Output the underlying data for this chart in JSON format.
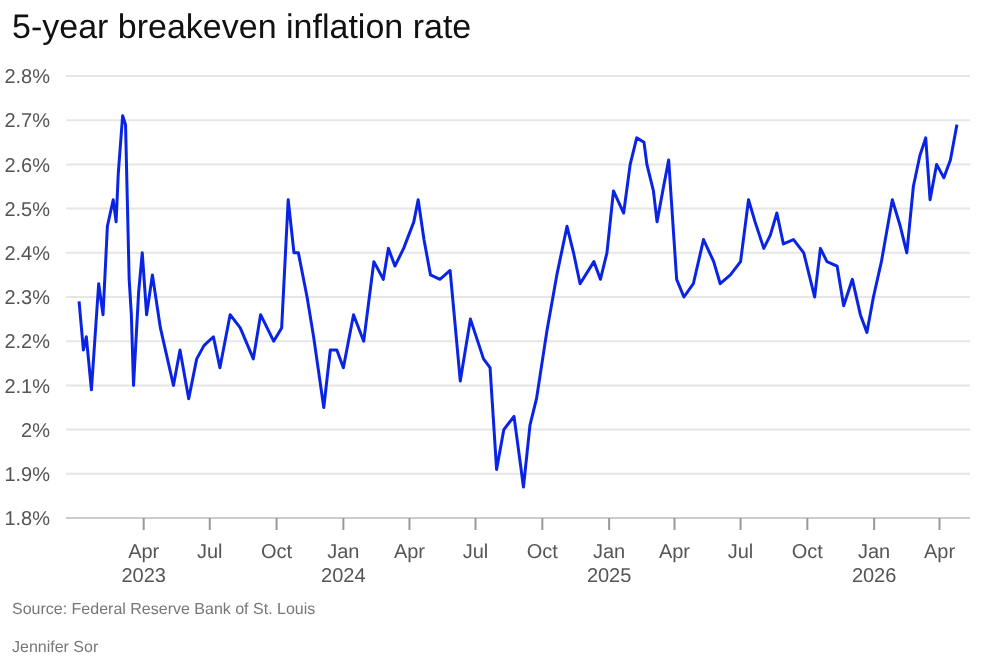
{
  "chart_data": {
    "type": "line",
    "title": "5-year breakeven inflation rate",
    "annotations": [
      "Source: Federal Reserve Bank of St. Louis",
      "Jennifer Sor"
    ],
    "x": [
      "2023-01-02",
      "2023-01-08",
      "2023-01-12",
      "2023-01-19",
      "2023-01-29",
      "2023-02-04",
      "2023-02-10",
      "2023-02-18",
      "2023-02-22",
      "2023-02-25",
      "2023-03-03",
      "2023-03-07",
      "2023-03-12",
      "2023-03-15",
      "2023-03-18",
      "2023-03-25",
      "2023-03-30",
      "2023-04-05",
      "2023-04-13",
      "2023-04-24",
      "2023-05-12",
      "2023-05-21",
      "2023-06-02",
      "2023-06-13",
      "2023-06-23",
      "2023-07-06",
      "2023-07-15",
      "2023-07-29",
      "2023-08-12",
      "2023-08-30",
      "2023-09-09",
      "2023-09-27",
      "2023-10-08",
      "2023-10-17",
      "2023-10-25",
      "2023-10-31",
      "2023-11-12",
      "2023-11-21",
      "2023-12-05",
      "2023-12-14",
      "2023-12-23",
      "2024-01-01",
      "2024-01-15",
      "2024-01-29",
      "2024-02-12",
      "2024-02-25",
      "2024-03-03",
      "2024-03-12",
      "2024-03-24",
      "2024-04-07",
      "2024-04-13",
      "2024-04-21",
      "2024-04-30",
      "2024-05-13",
      "2024-05-27",
      "2024-06-10",
      "2024-06-24",
      "2024-07-12",
      "2024-07-21",
      "2024-07-30",
      "2024-08-09",
      "2024-08-23",
      "2024-09-01",
      "2024-09-05",
      "2024-09-14",
      "2024-09-23",
      "2024-10-07",
      "2024-10-21",
      "2024-11-04",
      "2024-11-13",
      "2024-11-22",
      "2024-12-11",
      "2024-12-20",
      "2024-12-29",
      "2025-01-07",
      "2025-01-21",
      "2025-01-30",
      "2025-02-08",
      "2025-02-18",
      "2025-02-22",
      "2025-03-03",
      "2025-03-08",
      "2025-03-17",
      "2025-03-24",
      "2025-04-04",
      "2025-04-14",
      "2025-04-27",
      "2025-05-11",
      "2025-05-25",
      "2025-06-03",
      "2025-06-17",
      "2025-07-01",
      "2025-07-12",
      "2025-07-21",
      "2025-08-02",
      "2025-08-11",
      "2025-08-20",
      "2025-08-29",
      "2025-09-12",
      "2025-09-26",
      "2025-10-11",
      "2025-10-19",
      "2025-10-28",
      "2025-11-11",
      "2025-11-20",
      "2025-12-02",
      "2025-12-13",
      "2025-12-22",
      "2025-12-31",
      "2026-01-11",
      "2026-01-26",
      "2026-02-06",
      "2026-02-15",
      "2026-02-24",
      "2026-03-05",
      "2026-03-13",
      "2026-03-19",
      "2026-03-28",
      "2026-04-07",
      "2026-04-16",
      "2026-04-25"
    ],
    "series": [
      {
        "color": "#0a24e6",
        "values": [
          2.29,
          2.18,
          2.21,
          2.09,
          2.33,
          2.26,
          2.46,
          2.52,
          2.47,
          2.58,
          2.71,
          2.69,
          2.34,
          2.26,
          2.1,
          2.31,
          2.4,
          2.26,
          2.35,
          2.23,
          2.1,
          2.18,
          2.07,
          2.16,
          2.19,
          2.21,
          2.14,
          2.26,
          2.23,
          2.16,
          2.26,
          2.2,
          2.23,
          2.52,
          2.4,
          2.4,
          2.3,
          2.21,
          2.05,
          2.18,
          2.18,
          2.14,
          2.26,
          2.2,
          2.38,
          2.34,
          2.41,
          2.37,
          2.41,
          2.47,
          2.52,
          2.43,
          2.35,
          2.34,
          2.36,
          2.11,
          2.25,
          2.16,
          2.14,
          1.91,
          2.0,
          2.03,
          1.92,
          1.87,
          2.01,
          2.07,
          2.22,
          2.35,
          2.46,
          2.4,
          2.33,
          2.38,
          2.34,
          2.4,
          2.54,
          2.49,
          2.6,
          2.66,
          2.65,
          2.6,
          2.54,
          2.47,
          2.55,
          2.61,
          2.34,
          2.3,
          2.33,
          2.43,
          2.38,
          2.33,
          2.35,
          2.38,
          2.52,
          2.47,
          2.41,
          2.44,
          2.49,
          2.42,
          2.43,
          2.4,
          2.3,
          2.41,
          2.38,
          2.37,
          2.28,
          2.34,
          2.26,
          2.22,
          2.3,
          2.38,
          2.52,
          2.46,
          2.4,
          2.55,
          2.62,
          2.66,
          2.52,
          2.6,
          2.57,
          2.61,
          2.69
        ]
      }
    ],
    "xlim": [
      "2022-12-15",
      "2026-05-13"
    ],
    "xticks": [
      {
        "value": "2023-04-01",
        "label": "Apr 2023"
      },
      {
        "value": "2023-07-01",
        "label": "Jul"
      },
      {
        "value": "2023-10-01",
        "label": "Oct"
      },
      {
        "value": "2024-01-01",
        "label": "Jan 2024"
      },
      {
        "value": "2024-04-01",
        "label": "Apr"
      },
      {
        "value": "2024-07-01",
        "label": "Jul"
      },
      {
        "value": "2024-10-01",
        "label": "Oct"
      },
      {
        "value": "2025-01-01",
        "label": "Jan 2025"
      },
      {
        "value": "2025-04-01",
        "label": "Apr"
      },
      {
        "value": "2025-07-01",
        "label": "Jul"
      },
      {
        "value": "2025-10-01",
        "label": "Oct"
      },
      {
        "value": "2026-01-01",
        "label": "Jan 2026"
      },
      {
        "value": "2026-04-01",
        "label": "Apr"
      }
    ],
    "ylim": [
      1.8,
      2.8
    ],
    "yticks": [
      {
        "value": 1.8,
        "label": "1.8%"
      },
      {
        "value": 1.9,
        "label": "1.9%"
      },
      {
        "value": 2,
        "label": "2%"
      },
      {
        "value": 2.1,
        "label": "2.1%"
      },
      {
        "value": 2.2,
        "label": "2.2%"
      },
      {
        "value": 2.3,
        "label": "2.3%"
      },
      {
        "value": 2.4,
        "label": "2.4%"
      },
      {
        "value": 2.5,
        "label": "2.5%"
      },
      {
        "value": 2.6,
        "label": "2.6%"
      },
      {
        "value": 2.7,
        "label": "2.7%"
      },
      {
        "value": 2.8,
        "label": "2.8%"
      }
    ],
    "grid": "y",
    "marker": "none"
  }
}
